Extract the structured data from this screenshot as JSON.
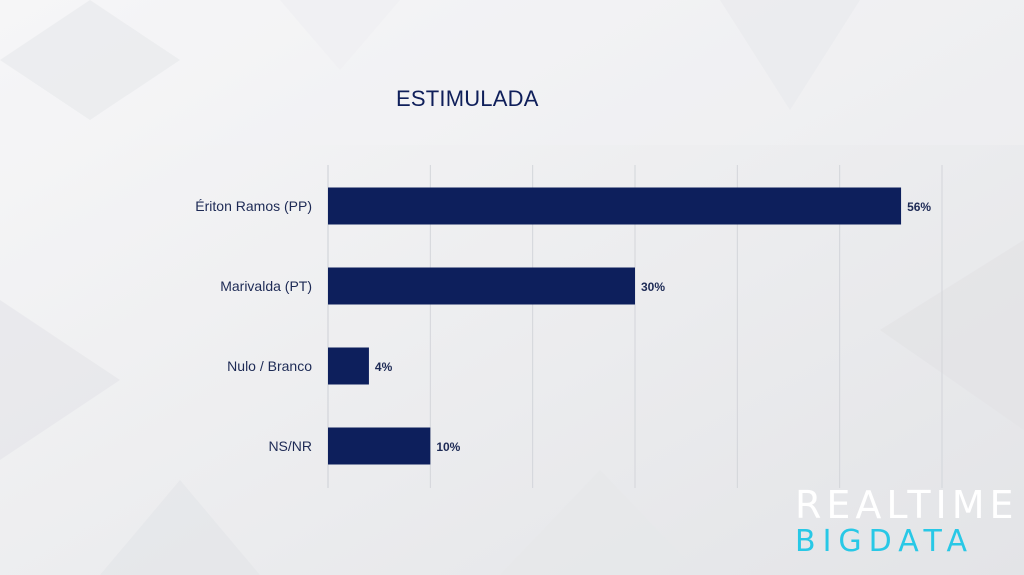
{
  "colors": {
    "bar": "#0d1f5c",
    "grid": "#d3d5da",
    "background": "#eeeff1",
    "logo_primary": "#ffffff",
    "logo_accent": "#28c8e6"
  },
  "logo": {
    "line1": "REALTIME",
    "line2": "BIGDATA"
  },
  "chart_data": {
    "type": "bar",
    "orientation": "horizontal",
    "title": "ESTIMULADA",
    "categories": [
      "Ériton Ramos (PP)",
      "Marivalda (PT)",
      "Nulo / Branco",
      "NS/NR"
    ],
    "values": [
      56,
      30,
      4,
      10
    ],
    "value_labels": [
      "56%",
      "30%",
      "4%",
      "10%"
    ],
    "xlim": [
      0,
      60
    ],
    "grid": true,
    "legend": "none"
  }
}
